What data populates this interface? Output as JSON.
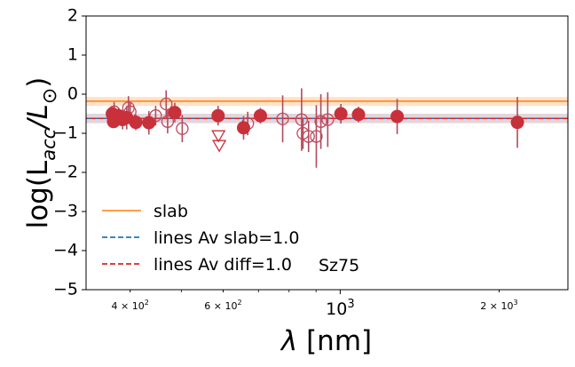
{
  "chart_data": {
    "type": "scatter",
    "title": "",
    "xlabel_symbol": "λ",
    "xlabel_unit": "[nm]",
    "ylabel_prefix": "log(L",
    "ylabel_sub": "acc",
    "ylabel_mid": "/L",
    "ylabel_sun": "⊙",
    "ylabel_suffix": ")",
    "xscale": "log",
    "xlim": [
      330,
      2700
    ],
    "ylim": [
      -5,
      2
    ],
    "y_ticks": [
      {
        "value": 2,
        "label": "2"
      },
      {
        "value": 1,
        "label": "1"
      },
      {
        "value": 0,
        "label": "0"
      },
      {
        "value": -1,
        "label": "−1"
      },
      {
        "value": -2,
        "label": "−2"
      },
      {
        "value": -3,
        "label": "−3"
      },
      {
        "value": -4,
        "label": "−4"
      },
      {
        "value": -5,
        "label": "−5"
      }
    ],
    "x_ticks": [
      {
        "value": 400,
        "base": "4 × 10",
        "exp": "2",
        "size": "small"
      },
      {
        "value": 600,
        "base": "6 × 10",
        "exp": "2",
        "size": "small"
      },
      {
        "value": 1000,
        "base": "10",
        "exp": "3",
        "size": "large"
      },
      {
        "value": 2000,
        "base": "2 × 10",
        "exp": "3",
        "size": "small"
      }
    ],
    "annotation": "Sz75",
    "slab": {
      "name": "slab",
      "value": -0.18,
      "band": [
        -0.3,
        -0.07
      ],
      "color": "#ff7f0e"
    },
    "lines_slab": {
      "name": "lines Av slab=1.0",
      "value": -0.62,
      "band": [
        -0.74,
        -0.5
      ],
      "color": "#1f77b4"
    },
    "lines_diff": {
      "name": "lines Av diff=1.0",
      "value": -0.62,
      "band": [
        -0.74,
        -0.5
      ],
      "color": "#d62728"
    },
    "points_filled": [
      {
        "x": 370,
        "y": -0.5,
        "err": 0.15
      },
      {
        "x": 372,
        "y": -0.7,
        "err": 0.12
      },
      {
        "x": 380,
        "y": -0.55,
        "err": 0.2
      },
      {
        "x": 387,
        "y": -0.65,
        "err": 0.25
      },
      {
        "x": 394,
        "y": -0.6,
        "err": 0.3
      },
      {
        "x": 410,
        "y": -0.72,
        "err": 0.2
      },
      {
        "x": 434,
        "y": -0.73,
        "err": 0.3
      },
      {
        "x": 486,
        "y": -0.47,
        "err": 0.25
      },
      {
        "x": 587,
        "y": -0.55,
        "err": 0.25
      },
      {
        "x": 656,
        "y": -0.86,
        "err": 0.3
      },
      {
        "x": 706,
        "y": -0.55,
        "err": 0.2
      },
      {
        "x": 1003,
        "y": -0.5,
        "err": 0.25
      },
      {
        "x": 1083,
        "y": -0.52,
        "err": 0.2
      },
      {
        "x": 1282,
        "y": -0.57,
        "err": 0.45
      },
      {
        "x": 2166,
        "y": -0.72,
        "err": 0.65
      }
    ],
    "points_open": [
      {
        "x": 373,
        "y": -0.45,
        "err": 0.25
      },
      {
        "x": 382,
        "y": -0.6,
        "err": 0.2
      },
      {
        "x": 397,
        "y": -0.35,
        "err": 0.3
      },
      {
        "x": 400,
        "y": -0.45,
        "err": 0.25
      },
      {
        "x": 447,
        "y": -0.55,
        "err": 0.25
      },
      {
        "x": 468,
        "y": -0.25,
        "err": 0.35
      },
      {
        "x": 471,
        "y": -0.7,
        "err": 0.3
      },
      {
        "x": 502,
        "y": -0.88,
        "err": 0.35
      },
      {
        "x": 668,
        "y": -0.75,
        "err": 0.3
      },
      {
        "x": 778,
        "y": -0.63,
        "err": 0.6
      },
      {
        "x": 845,
        "y": -0.65,
        "err": 0.8
      },
      {
        "x": 850,
        "y": -1.0,
        "err": 0.4
      },
      {
        "x": 871,
        "y": -1.08,
        "err": 0.4
      },
      {
        "x": 901,
        "y": -1.08,
        "err": 0.8
      },
      {
        "x": 919,
        "y": -0.7,
        "err": 0.7
      },
      {
        "x": 947,
        "y": -0.65,
        "err": 0.7
      }
    ],
    "upper_limits": [
      {
        "x": 588,
        "y": -1.05
      },
      {
        "x": 590,
        "y": -1.3
      }
    ]
  }
}
